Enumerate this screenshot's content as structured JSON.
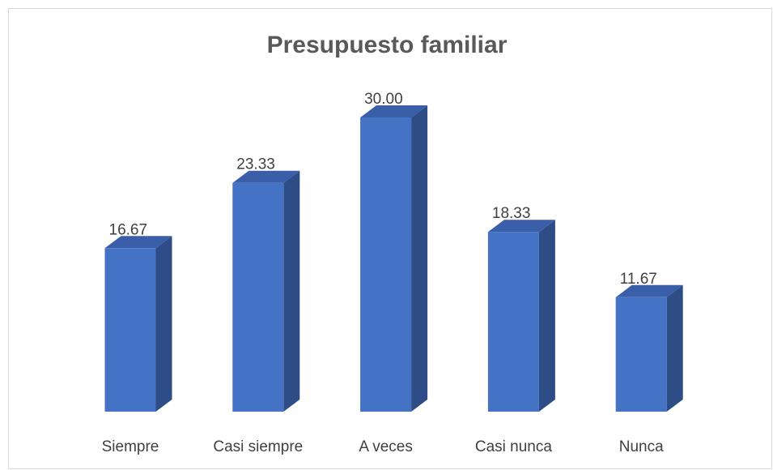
{
  "chart_data": {
    "type": "bar3d",
    "title": "Presupuesto familiar",
    "categories": [
      "Siempre",
      "Casi siempre",
      "A veces",
      "Casi nunca",
      "Nunca"
    ],
    "values": [
      16.67,
      23.33,
      30.0,
      18.33,
      11.67
    ],
    "value_labels": [
      "16.67",
      "23.33",
      "30.00",
      "18.33",
      "11.67"
    ],
    "color": "#4472c4"
  }
}
